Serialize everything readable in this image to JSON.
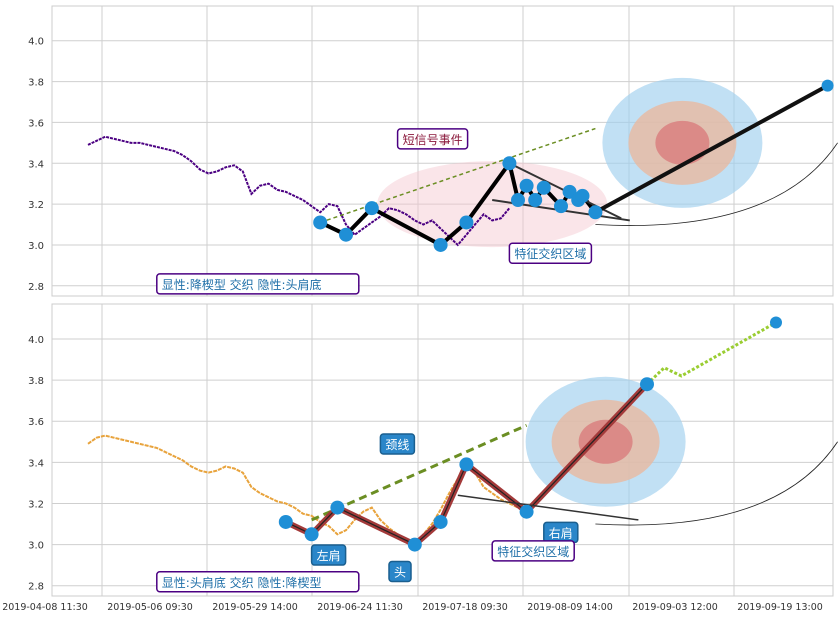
{
  "chart_data": [
    {
      "type": "line",
      "panel": "top",
      "ylim": [
        2.75,
        4.17
      ],
      "yticks": [
        2.8,
        3.0,
        3.2,
        3.4,
        3.6,
        3.8,
        4.0
      ],
      "grid": true,
      "price_color": "#4b0082",
      "price_series": [
        [
          0,
          3.49
        ],
        [
          1,
          3.51
        ],
        [
          2,
          3.53
        ],
        [
          3,
          3.52
        ],
        [
          4,
          3.51
        ],
        [
          5,
          3.5
        ],
        [
          6,
          3.5
        ],
        [
          7,
          3.49
        ],
        [
          8,
          3.48
        ],
        [
          9,
          3.47
        ],
        [
          10,
          3.46
        ],
        [
          11,
          3.44
        ],
        [
          12,
          3.41
        ],
        [
          13,
          3.37
        ],
        [
          14,
          3.35
        ],
        [
          15,
          3.36
        ],
        [
          16,
          3.38
        ],
        [
          17,
          3.39
        ],
        [
          18,
          3.36
        ],
        [
          19,
          3.25
        ],
        [
          20,
          3.29
        ],
        [
          21,
          3.3
        ],
        [
          22,
          3.27
        ],
        [
          23,
          3.26
        ],
        [
          24,
          3.24
        ],
        [
          25,
          3.22
        ],
        [
          26,
          3.19
        ],
        [
          27,
          3.16
        ],
        [
          28,
          3.2
        ],
        [
          29,
          3.19
        ],
        [
          30,
          3.1
        ],
        [
          31,
          3.05
        ],
        [
          32,
          3.08
        ],
        [
          33,
          3.11
        ],
        [
          34,
          3.14
        ],
        [
          35,
          3.18
        ],
        [
          36,
          3.17
        ],
        [
          37,
          3.15
        ],
        [
          38,
          3.12
        ],
        [
          39,
          3.1
        ],
        [
          40,
          3.12
        ],
        [
          41,
          3.08
        ],
        [
          42,
          3.04
        ],
        [
          43,
          3.0
        ],
        [
          44,
          3.05
        ],
        [
          45,
          3.1
        ],
        [
          46,
          3.15
        ],
        [
          47,
          3.12
        ],
        [
          48,
          3.13
        ],
        [
          49,
          3.18
        ]
      ],
      "pattern_points": [
        [
          27,
          3.11
        ],
        [
          30,
          3.05
        ],
        [
          33,
          3.18
        ],
        [
          41,
          3.0
        ],
        [
          44,
          3.11
        ],
        [
          49,
          3.4
        ],
        [
          50,
          3.22
        ],
        [
          51,
          3.29
        ],
        [
          52,
          3.22
        ],
        [
          53,
          3.28
        ],
        [
          55,
          3.19
        ],
        [
          56,
          3.26
        ],
        [
          57,
          3.22
        ],
        [
          57.5,
          3.24
        ],
        [
          59,
          3.16
        ]
      ],
      "end_point": [
        86,
        3.78
      ],
      "dashed_line": [
        [
          27,
          3.11
        ],
        [
          59,
          3.57
        ]
      ],
      "annotations": [
        {
          "text": "短信号事件",
          "x": 36,
          "y": 3.49,
          "color": "#8b1a3c"
        },
        {
          "text": "特征交织区域",
          "x": 49,
          "y": 2.93,
          "color": "#1f6fa8"
        },
        {
          "text": "显性:降楔型 交织 隐性:头肩底",
          "x": 8,
          "y": 2.78,
          "color": "#1f6fa8"
        }
      ]
    },
    {
      "type": "line",
      "panel": "bottom",
      "ylim": [
        2.75,
        4.17
      ],
      "yticks": [
        2.8,
        3.0,
        3.2,
        3.4,
        3.6,
        3.8,
        4.0
      ],
      "grid": true,
      "price_color": "#e8a33c",
      "xticks": [
        "2019-04-08 11:30",
        "2019-05-06 09:30",
        "2019-05-29 14:00",
        "2019-06-24 11:30",
        "2019-07-18 09:30",
        "2019-08-09 14:00",
        "2019-09-03 12:00",
        "2019-09-19 13:00"
      ],
      "price_series": [
        [
          0,
          3.49
        ],
        [
          1,
          3.52
        ],
        [
          2,
          3.53
        ],
        [
          3,
          3.52
        ],
        [
          4,
          3.51
        ],
        [
          5,
          3.5
        ],
        [
          6,
          3.49
        ],
        [
          7,
          3.48
        ],
        [
          8,
          3.47
        ],
        [
          9,
          3.45
        ],
        [
          10,
          3.43
        ],
        [
          11,
          3.41
        ],
        [
          12,
          3.38
        ],
        [
          13,
          3.36
        ],
        [
          14,
          3.35
        ],
        [
          15,
          3.36
        ],
        [
          16,
          3.38
        ],
        [
          17,
          3.37
        ],
        [
          18,
          3.35
        ],
        [
          19,
          3.28
        ],
        [
          20,
          3.25
        ],
        [
          21,
          3.23
        ],
        [
          22,
          3.21
        ],
        [
          23,
          3.2
        ],
        [
          24,
          3.18
        ],
        [
          25,
          3.15
        ],
        [
          26,
          3.14
        ],
        [
          27,
          3.11
        ],
        [
          28,
          3.09
        ],
        [
          29,
          3.05
        ],
        [
          30,
          3.07
        ],
        [
          31,
          3.12
        ],
        [
          32,
          3.16
        ],
        [
          33,
          3.18
        ],
        [
          34,
          3.12
        ],
        [
          35,
          3.08
        ],
        [
          36,
          3.05
        ],
        [
          37,
          3.02
        ],
        [
          38,
          3.0
        ],
        [
          39,
          3.05
        ],
        [
          40,
          3.1
        ],
        [
          41,
          3.17
        ],
        [
          42,
          3.25
        ],
        [
          43,
          3.32
        ],
        [
          44,
          3.39
        ],
        [
          45,
          3.35
        ],
        [
          46,
          3.28
        ],
        [
          47,
          3.25
        ],
        [
          48,
          3.22
        ],
        [
          49,
          3.2
        ],
        [
          50,
          3.18
        ],
        [
          51,
          3.16
        ]
      ],
      "pattern_points": [
        [
          23,
          3.11
        ],
        [
          26,
          3.05
        ],
        [
          29,
          3.18
        ],
        [
          38,
          3.0
        ],
        [
          41,
          3.11
        ],
        [
          44,
          3.39
        ],
        [
          51,
          3.16
        ],
        [
          65,
          3.78
        ]
      ],
      "end_point": [
        80,
        4.08
      ],
      "dashed_line": [
        [
          26,
          3.12
        ],
        [
          51,
          3.58
        ]
      ],
      "annotations": [
        {
          "text": "颈线",
          "x": 34,
          "y": 3.46,
          "color": "#ffffff"
        },
        {
          "text": "左肩",
          "x": 26,
          "y": 2.92,
          "color": "#ffffff"
        },
        {
          "text": "头",
          "x": 35,
          "y": 2.84,
          "color": "#ffffff"
        },
        {
          "text": "右肩",
          "x": 53,
          "y": 3.03,
          "color": "#ffffff"
        },
        {
          "text": "特征交织区域",
          "x": 47,
          "y": 2.94,
          "color": "#1f6fa8"
        },
        {
          "text": "显性:头肩底 交织 隐性:降楔型",
          "x": 8,
          "y": 2.79,
          "color": "#1f6fa8"
        }
      ]
    }
  ],
  "colors": {
    "grid": "#cfcfcf",
    "frame": "#cccccc",
    "marker": "#1f8fd6",
    "pattern_top": "#000000",
    "pattern_bottom": "#a33a3a",
    "neckline_top": "#6b8e23",
    "neckline_bottom": "#6b8e23",
    "target_outer": "#9fcfee",
    "target_mid": "#e8b9a0",
    "target_inner": "#d98080",
    "box_border": "#4b0082",
    "label_fill": "#2a86c9"
  }
}
